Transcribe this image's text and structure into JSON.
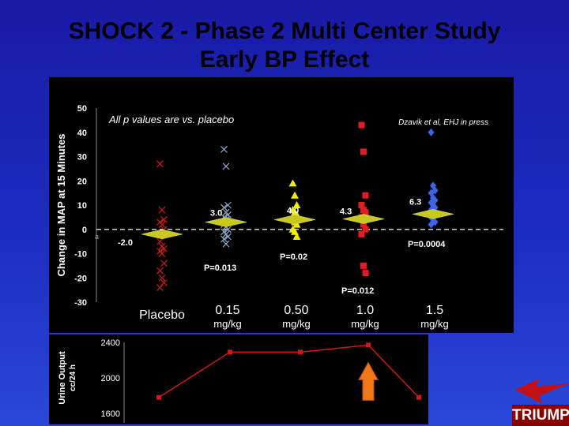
{
  "slide": {
    "title_line1": "SHOCK 2 - Phase 2 Multi Center Study",
    "title_line2": "Early BP Effect",
    "brand": "TRIUMPH"
  },
  "chart_data": [
    {
      "type": "scatter",
      "ylabel": "Change in MAP at 15 Minutes",
      "ylim": [
        -30,
        50
      ],
      "yticks": [
        -30,
        -20,
        -10,
        0,
        10,
        20,
        30,
        40,
        50
      ],
      "yticks_labels": [
        "-30",
        "-20",
        "-10",
        "0",
        "10",
        "20",
        "30",
        "40",
        "50"
      ],
      "grid": false,
      "zero_line": "dashed",
      "subtitle": "All p values are vs. placebo",
      "citation": "Dzavik et al, EHJ in press",
      "categories": [
        {
          "line1": "Placebo",
          "line2": ""
        },
        {
          "line1": "0.15",
          "line2": "mg/kg"
        },
        {
          "line1": "0.50",
          "line2": "mg/kg"
        },
        {
          "line1": "1.0",
          "line2": "mg/kg"
        },
        {
          "line1": "1.5",
          "line2": "mg/kg"
        }
      ],
      "series": [
        {
          "marker": "x",
          "color": "#d01818",
          "values": [
            27,
            8,
            4,
            3,
            2,
            0,
            -5,
            -7,
            -8,
            -9,
            -10,
            -14,
            -17,
            -20,
            -22,
            -24
          ]
        },
        {
          "marker": "x",
          "color": "#8fa6c8",
          "values": [
            33,
            26,
            10,
            9,
            7,
            6,
            5,
            4,
            3,
            2,
            1,
            0,
            -1,
            -2,
            -3,
            -4,
            -6
          ]
        },
        {
          "marker": "triangle",
          "color": "#f0ec00",
          "values": [
            19,
            14,
            10,
            8,
            7,
            6,
            4,
            3,
            2,
            0,
            -1,
            -3
          ]
        },
        {
          "marker": "square",
          "color": "#e01c24",
          "values": [
            43,
            32,
            14,
            10,
            8,
            7,
            5,
            2,
            0,
            -2,
            -15,
            -18
          ]
        },
        {
          "marker": "diamond",
          "color": "#3c64e6",
          "values": [
            40,
            18,
            16,
            15,
            13,
            12,
            11,
            10,
            9,
            8,
            7,
            6,
            5,
            4,
            3,
            2
          ]
        }
      ],
      "means": [
        -2.0,
        3.0,
        4.0,
        4.3,
        6.3
      ],
      "mean_labels": [
        "-2.0",
        "3.0",
        "4.0",
        "4.3",
        "6.3"
      ],
      "p_values": [
        {
          "text": "P=0.013",
          "group": 1
        },
        {
          "text": "P=0.02",
          "group": 2
        },
        {
          "text": "P=0.012",
          "group": 3
        },
        {
          "text": "P=0.0004",
          "group": 4
        }
      ],
      "bottom_stub": "a"
    },
    {
      "type": "line",
      "ylabel_line1": "Urine Output",
      "ylabel_line2": "cc/24 h",
      "ylim": [
        1600,
        2400
      ],
      "yticks": [
        1600,
        2000,
        2400
      ],
      "yticks_labels": [
        "1600",
        "2000",
        "2400"
      ],
      "values": [
        1780,
        2290,
        2290,
        2370,
        1780
      ],
      "line_color": "#d01818",
      "highlight": "1.0 mg/kg"
    }
  ]
}
